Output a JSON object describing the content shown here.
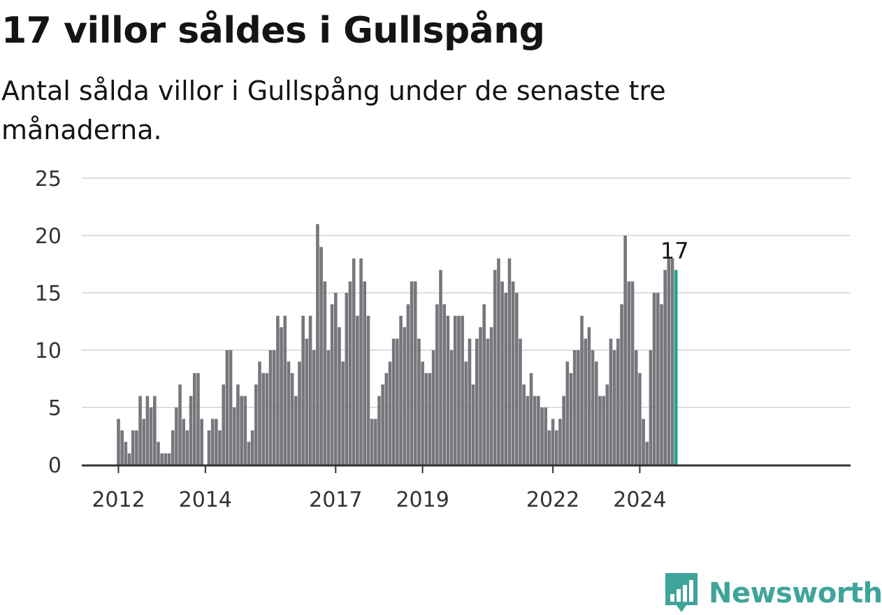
{
  "chart_data": {
    "type": "bar",
    "title": "17 villor såldes i Gullspång",
    "subtitle": "Antal sålda villor i Gullspång under de senaste tre månaderna.",
    "xlabel": "",
    "ylabel": "",
    "ylim": [
      0,
      25
    ],
    "yticks": [
      0,
      5,
      10,
      15,
      20,
      25
    ],
    "xtick_labels": [
      "2012",
      "2014",
      "2017",
      "2019",
      "2022",
      "2024"
    ],
    "grid": true,
    "start_year": 2012,
    "start_month": 1,
    "values": [
      4,
      3,
      2,
      1,
      3,
      3,
      6,
      4,
      6,
      5,
      6,
      2,
      1,
      1,
      1,
      3,
      5,
      7,
      4,
      3,
      6,
      8,
      8,
      4,
      0,
      3,
      4,
      4,
      3,
      7,
      10,
      10,
      5,
      7,
      6,
      6,
      2,
      3,
      7,
      9,
      8,
      8,
      10,
      10,
      13,
      12,
      13,
      9,
      8,
      6,
      9,
      13,
      11,
      13,
      10,
      21,
      19,
      16,
      10,
      14,
      15,
      12,
      9,
      15,
      16,
      18,
      13,
      18,
      16,
      13,
      4,
      4,
      6,
      7,
      8,
      9,
      11,
      11,
      13,
      12,
      14,
      16,
      16,
      11,
      9,
      8,
      8,
      10,
      14,
      17,
      14,
      13,
      10,
      13,
      13,
      13,
      9,
      11,
      7,
      11,
      12,
      14,
      11,
      12,
      17,
      18,
      16,
      15,
      18,
      16,
      15,
      11,
      7,
      6,
      8,
      6,
      6,
      5,
      5,
      3,
      4,
      3,
      4,
      6,
      9,
      8,
      10,
      10,
      13,
      11,
      12,
      10,
      9,
      6,
      6,
      7,
      11,
      10,
      11,
      14,
      20,
      16,
      16,
      10,
      8,
      4,
      2,
      10,
      15,
      15,
      14,
      17,
      18,
      18,
      17
    ],
    "highlight_last": true,
    "last_value_label": "17",
    "bar_color": "#76767c",
    "highlight_color": "#1fa39a",
    "grid_color": "#dedede"
  },
  "logo": {
    "text": "Newsworthy",
    "color": "#3fa49a"
  }
}
